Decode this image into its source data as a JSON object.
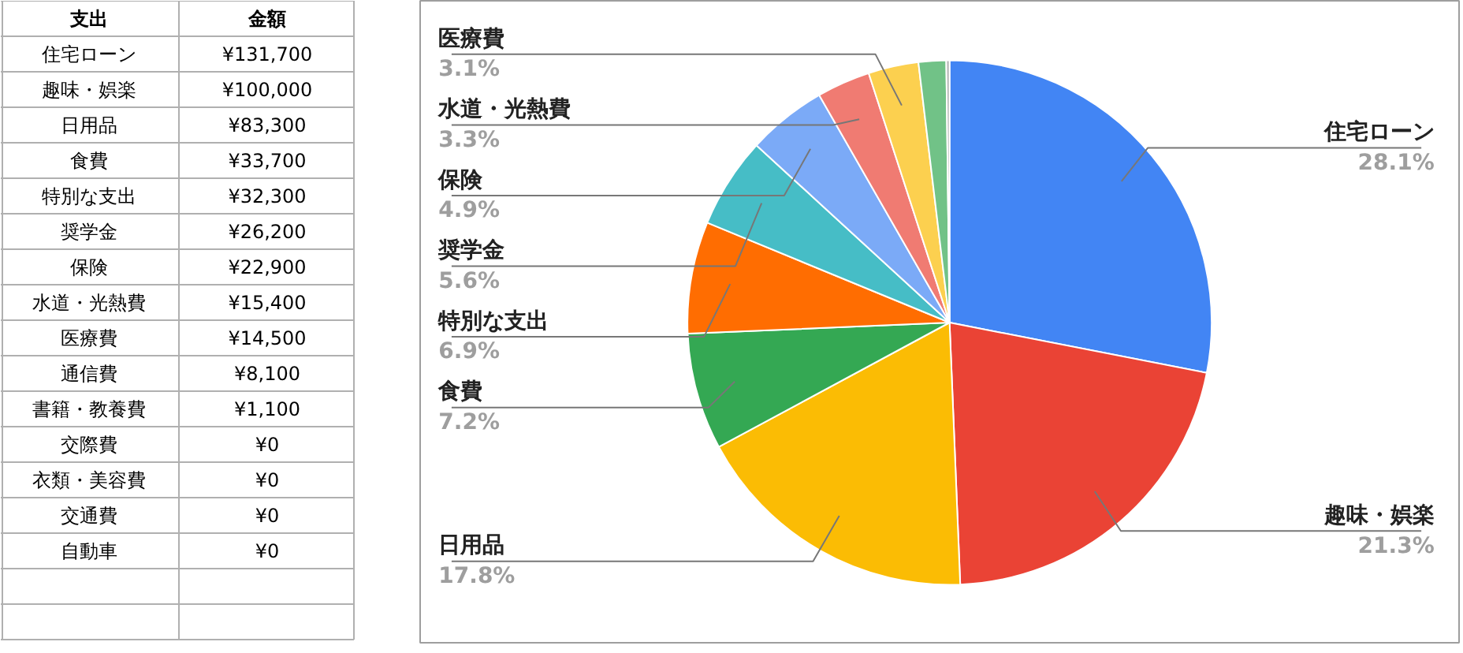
{
  "chart_data": [
    {
      "type": "other",
      "annotations": [
        "支出",
        "金額"
      ],
      "categories": [
        "住宅ローン",
        "趣味・娯楽",
        "日用品",
        "食費",
        "特別な支出",
        "奨学金",
        "保険",
        "水道・光熱費",
        "医療費",
        "通信費",
        "書籍・教養費",
        "交際費",
        "衣類・美容費",
        "交通費",
        "自動車"
      ],
      "value_labels": [
        "¥131,700",
        "¥100,000",
        "¥83,300",
        "¥33,700",
        "¥32,300",
        "¥26,200",
        "¥22,900",
        "¥15,400",
        "¥14,500",
        "¥8,100",
        "¥1,100",
        "¥0",
        "¥0",
        "¥0",
        "¥0"
      ]
    },
    {
      "type": "pie",
      "categories": [
        "住宅ローン",
        "趣味・娯楽",
        "日用品",
        "食費",
        "特別な支出",
        "奨学金",
        "保険",
        "水道・光熱費",
        "医療費",
        null,
        null
      ],
      "values": [
        28.1,
        21.3,
        17.8,
        7.2,
        6.9,
        5.6,
        4.9,
        3.3,
        3.1,
        1.7,
        0.2
      ],
      "value_labels": [
        "28.1%",
        "21.3%",
        "17.8%",
        "7.2%",
        "6.9%",
        "5.6%",
        "4.9%",
        "3.3%",
        "3.1%",
        null,
        null
      ],
      "colors": [
        "#4285f4",
        "#ea4335",
        "#fbbc04",
        "#34a853",
        "#ff6d01",
        "#46bdc6",
        "#7baaf7",
        "#f07b72",
        "#fcd04f",
        "#71c287",
        "#b3b3b3"
      ]
    }
  ]
}
